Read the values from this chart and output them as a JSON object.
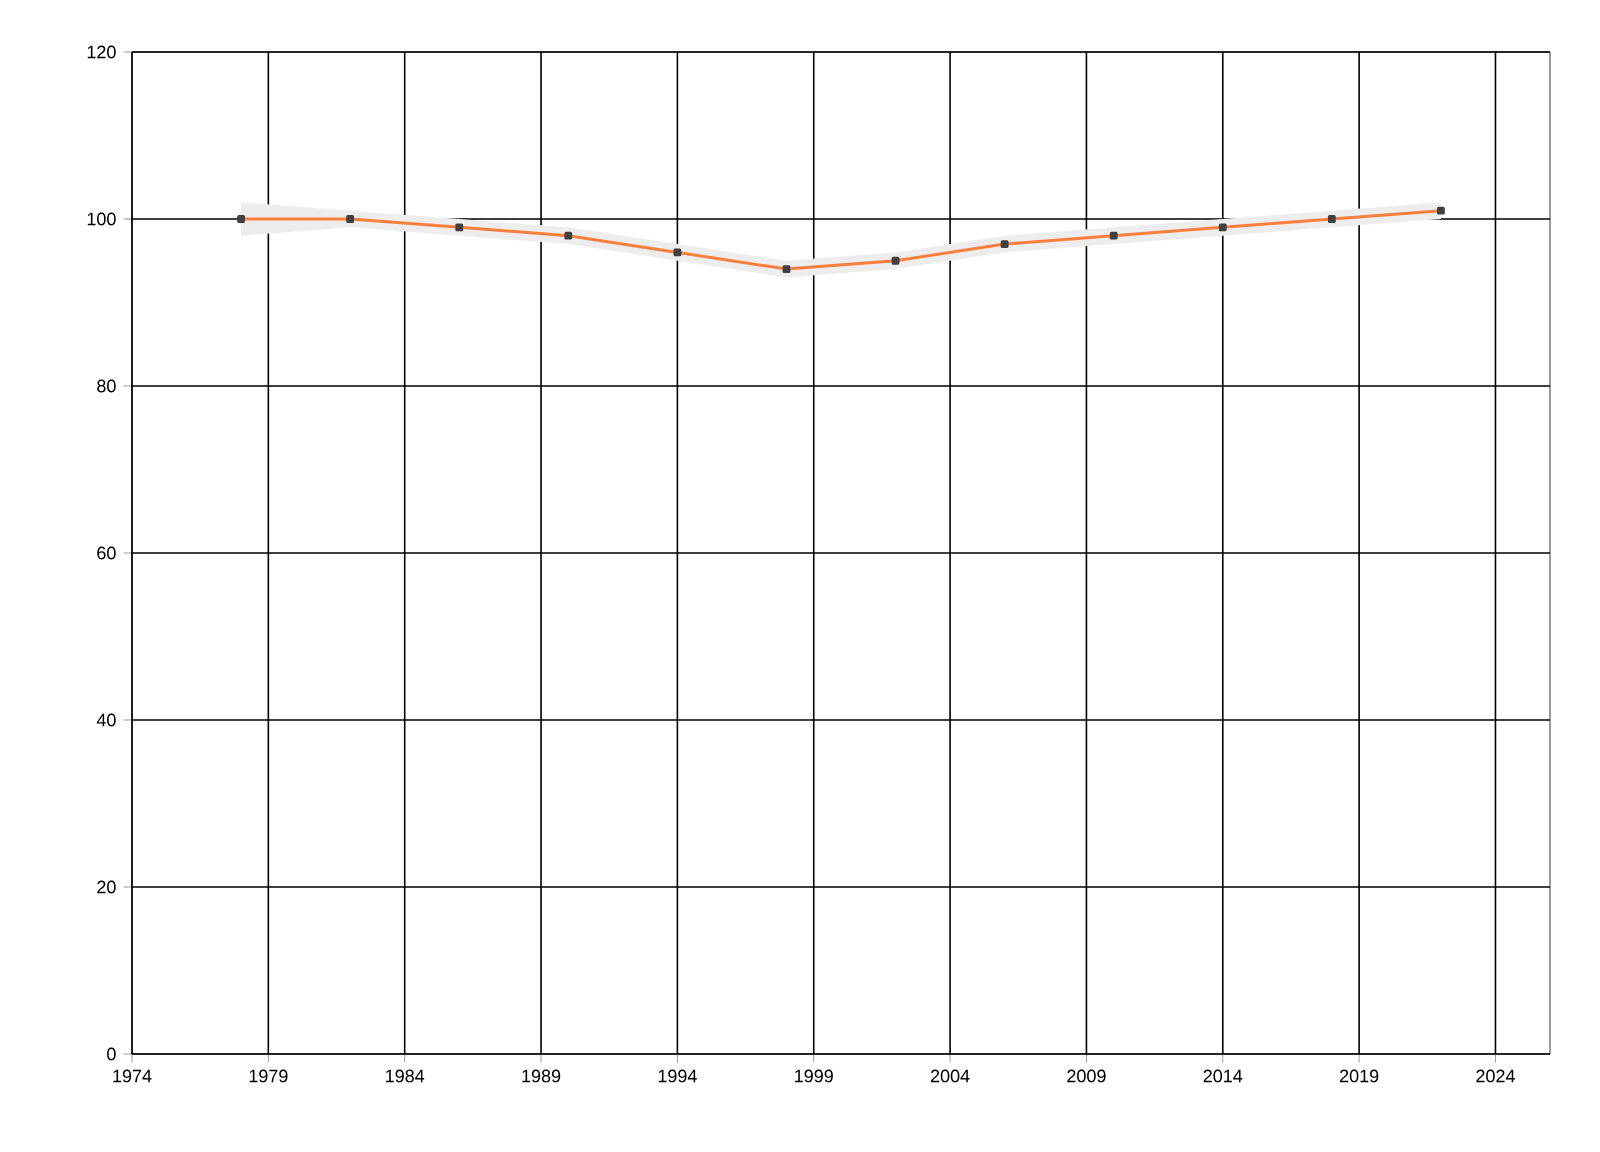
{
  "chart_data": {
    "type": "line",
    "x": [
      1978,
      1982,
      1986,
      1990,
      1994,
      1998,
      2002,
      2006,
      2010,
      2014,
      2018,
      2022
    ],
    "series": [
      {
        "color": "#ff7f3f",
        "values": [
          100,
          100,
          99,
          98,
          96,
          94,
          95,
          97,
          98,
          99,
          100,
          101
        ],
        "lower": [
          98,
          99,
          98,
          97,
          95,
          93,
          94,
          96,
          97,
          98,
          99,
          100
        ],
        "upper": [
          102,
          101,
          100,
          99,
          97,
          95,
          96,
          98,
          99,
          100,
          101,
          102
        ]
      }
    ],
    "xlim": [
      1974,
      2026
    ],
    "xticks": [
      1974,
      1979,
      1984,
      1989,
      1994,
      1999,
      2004,
      2009,
      2014,
      2019,
      2024
    ],
    "ylim": [
      0,
      120
    ],
    "yticks": [
      0,
      20,
      40,
      60,
      80,
      100,
      120
    ],
    "grid": true,
    "marker": "square",
    "line_style": "solid"
  }
}
